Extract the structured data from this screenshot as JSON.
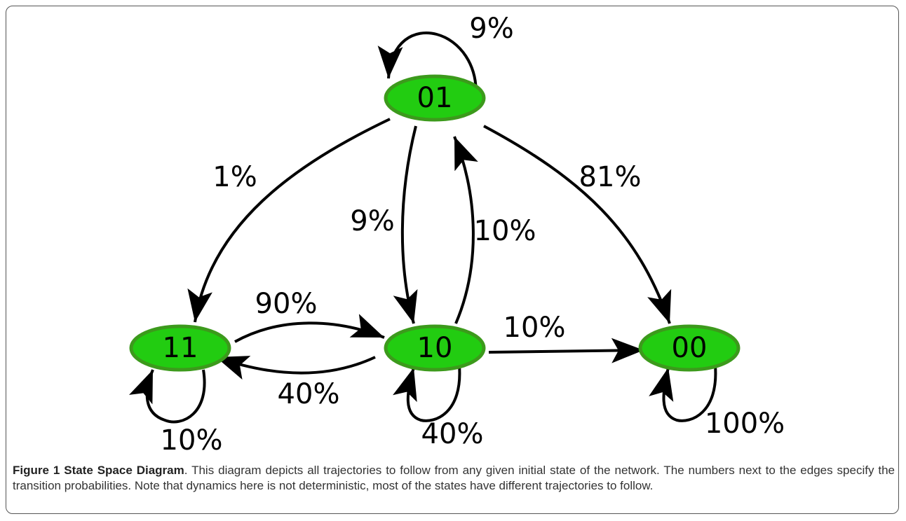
{
  "nodes": [
    {
      "label": "01"
    },
    {
      "label": "11"
    },
    {
      "label": "10"
    },
    {
      "label": "00"
    }
  ],
  "edges": [
    {
      "label": "9%"
    },
    {
      "label": "1%"
    },
    {
      "label": "81%"
    },
    {
      "label": "9%"
    },
    {
      "label": "10%"
    },
    {
      "label": "90%"
    },
    {
      "label": "10%"
    },
    {
      "label": "40%"
    },
    {
      "label": "10%"
    },
    {
      "label": "40%"
    },
    {
      "label": "100%"
    }
  ],
  "caption": {
    "title": "Figure 1 State Space Diagram",
    "text": ". This diagram depicts all trajectories to follow from any given initial state of the network. The numbers next to the edges specify the transition probabilities. Note that dynamics here is not deterministic, most of the states have different trajectories to follow."
  }
}
